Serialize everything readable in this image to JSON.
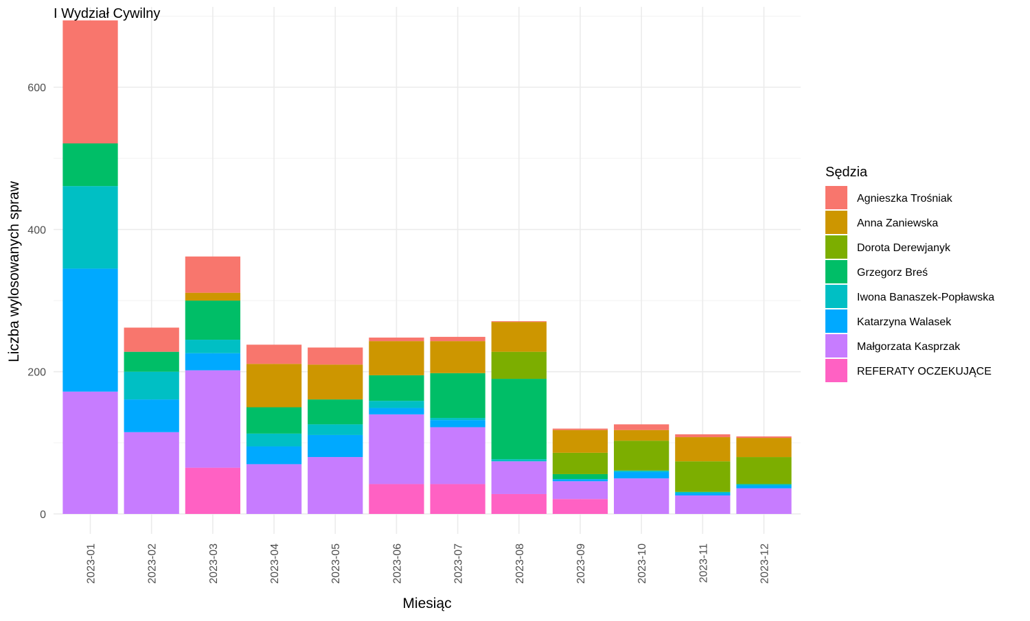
{
  "chart_data": {
    "type": "bar",
    "stacked": true,
    "title": "I Wydział Cywilny",
    "xlabel": "Miesiąc",
    "ylabel": "Liczba wylosowanych spraw",
    "ylim": [
      -28,
      713
    ],
    "yticks": [
      0,
      200,
      400,
      600
    ],
    "grid": true,
    "legend_title": "Sędzia",
    "legend_position": "right",
    "categories": [
      "2023-01",
      "2023-02",
      "2023-03",
      "2023-04",
      "2023-05",
      "2023-06",
      "2023-07",
      "2023-08",
      "2023-09",
      "2023-10",
      "2023-11",
      "2023-12"
    ],
    "series": [
      {
        "name": "REFERATY OCZEKUJĄCE",
        "color": "#FF61C3",
        "values": [
          0,
          0,
          65,
          0,
          0,
          42,
          42,
          28,
          21,
          0,
          0,
          0
        ]
      },
      {
        "name": "Małgorzata Kasprzak",
        "color": "#C77CFF",
        "values": [
          172,
          115,
          137,
          70,
          80,
          98,
          80,
          46,
          25,
          50,
          26,
          36
        ]
      },
      {
        "name": "Katarzyna Walasek",
        "color": "#00A9FF",
        "values": [
          173,
          46,
          24,
          25,
          31,
          9,
          10,
          0,
          3,
          9,
          3,
          4
        ]
      },
      {
        "name": "Iwona Banaszek-Popławska",
        "color": "#00BFC4",
        "values": [
          116,
          39,
          19,
          18,
          15,
          10,
          3,
          3,
          0,
          2,
          2,
          2
        ]
      },
      {
        "name": "Grzegorz Breś",
        "color": "#00BE67",
        "values": [
          60,
          28,
          55,
          37,
          35,
          36,
          63,
          113,
          7,
          0,
          0,
          0
        ]
      },
      {
        "name": "Dorota Derewjanyk",
        "color": "#7CAE00",
        "values": [
          0,
          0,
          0,
          0,
          0,
          0,
          0,
          38,
          30,
          42,
          43,
          38
        ]
      },
      {
        "name": "Anna Zaniewska",
        "color": "#CD9600",
        "values": [
          0,
          0,
          11,
          61,
          49,
          48,
          45,
          42,
          32,
          15,
          34,
          27
        ]
      },
      {
        "name": "Agnieszka Trośniak",
        "color": "#F8766D",
        "values": [
          173,
          34,
          51,
          27,
          24,
          5,
          6,
          1,
          2,
          8,
          4,
          2
        ]
      }
    ],
    "legend_order": [
      "Agnieszka Trośniak",
      "Anna Zaniewska",
      "Dorota Derewjanyk",
      "Grzegorz Breś",
      "Iwona Banaszek-Popławska",
      "Katarzyna Walasek",
      "Małgorzata Kasprzak",
      "REFERATY OCZEKUJĄCE"
    ]
  }
}
